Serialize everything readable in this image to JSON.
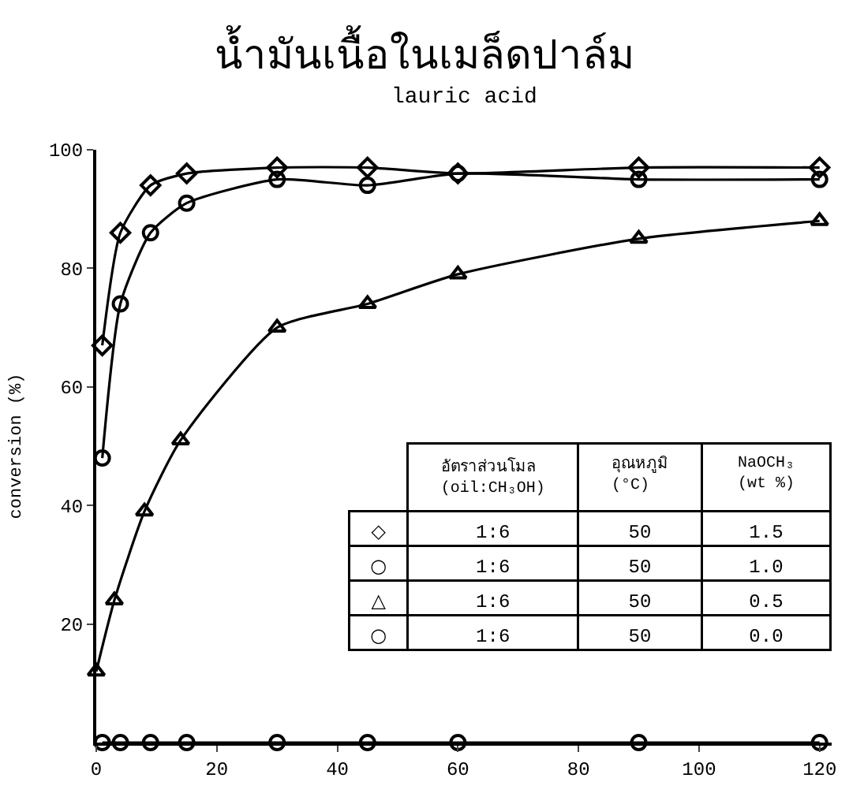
{
  "chart_data": {
    "type": "line",
    "title": "น้ำมันเนื้อในเมล็ดปาล์ม",
    "subtitle": "lauric acid",
    "ylabel": "conversion (%)",
    "xlim": [
      0,
      122
    ],
    "xticks": [
      0,
      20,
      40,
      60,
      80,
      100,
      120
    ],
    "ylim": [
      0,
      100
    ],
    "yticks": [
      20,
      40,
      60,
      80,
      100
    ],
    "series": [
      {
        "color": "#000000",
        "marker": "diamond",
        "x": [
          1,
          4,
          9,
          15,
          30,
          45,
          60,
          90,
          120
        ],
        "values": [
          67,
          86,
          94,
          96,
          97,
          97,
          96,
          97,
          97
        ]
      },
      {
        "color": "#000000",
        "marker": "circle",
        "x": [
          1,
          4,
          9,
          15,
          30,
          45,
          60,
          90,
          120
        ],
        "values": [
          48,
          74,
          86,
          91,
          95,
          94,
          96,
          95,
          95
        ]
      },
      {
        "color": "#000000",
        "marker": "triangle",
        "x": [
          0,
          3,
          8,
          14,
          30,
          45,
          60,
          90,
          120
        ],
        "values": [
          12,
          24,
          39,
          51,
          70,
          74,
          79,
          85,
          88
        ]
      },
      {
        "color": "#000000",
        "marker": "circle",
        "x": [
          1,
          4,
          9,
          15,
          30,
          45,
          60,
          90,
          120
        ],
        "values": [
          0,
          0,
          0,
          0,
          0,
          0,
          0,
          0,
          0
        ]
      }
    ],
    "annotations": [
      "อัตราส่วนโมล\n(oil:CH₃OH)",
      "อุณหภูมิ\n(°C)",
      "NaOCH₃\n(wt %)",
      "◇",
      "1:6",
      "50",
      "1.5",
      "○",
      "1:6",
      "50",
      "1.0",
      "△",
      "1:6",
      "50",
      "0.5",
      "○",
      "1:6",
      "50",
      "0.0"
    ]
  }
}
